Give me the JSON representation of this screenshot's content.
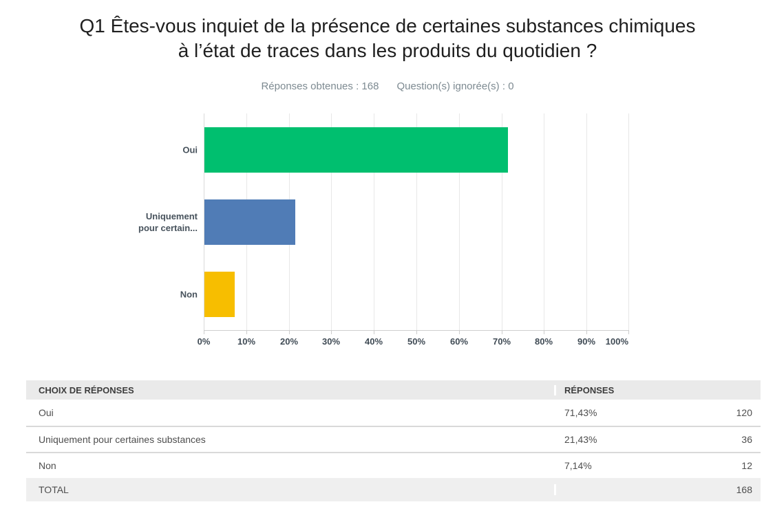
{
  "title": {
    "line1": "Q1 Êtes-vous inquiet de la présence de certaines substances chimiques",
    "line2": "à l’état de traces dans les produits du quotidien ?"
  },
  "stats": {
    "answered_label": "Réponses obtenues :",
    "answered_value": "168",
    "skipped_label": "Question(s) ignorée(s) :",
    "skipped_value": "0"
  },
  "chart_data": {
    "type": "bar",
    "orientation": "horizontal",
    "title": "",
    "categories": [
      "Oui",
      "Uniquement pour certaines substances",
      "Non"
    ],
    "axis_display_labels": [
      "Oui",
      "Uniquement pour certain...",
      "Non"
    ],
    "values": [
      71.43,
      21.43,
      7.14
    ],
    "counts": [
      120,
      36,
      12
    ],
    "colors": [
      "#00BF6F",
      "#507CB6",
      "#F7BE00"
    ],
    "xlim": [
      0,
      100
    ],
    "x_tick_labels": [
      "0%",
      "10%",
      "20%",
      "30%",
      "40%",
      "50%",
      "60%",
      "70%",
      "80%",
      "90%",
      "100%"
    ],
    "grid": true,
    "legend": false
  },
  "table": {
    "headers": [
      "CHOIX DE RÉPONSES",
      "RÉPONSES"
    ],
    "rows": [
      {
        "choice": "Oui",
        "percent": "71,43%",
        "count": "120"
      },
      {
        "choice": "Uniquement pour certaines substances",
        "percent": "21,43%",
        "count": "36"
      },
      {
        "choice": "Non",
        "percent": "7,14%",
        "count": "12"
      }
    ],
    "total": {
      "label": "TOTAL",
      "value": "168"
    }
  }
}
